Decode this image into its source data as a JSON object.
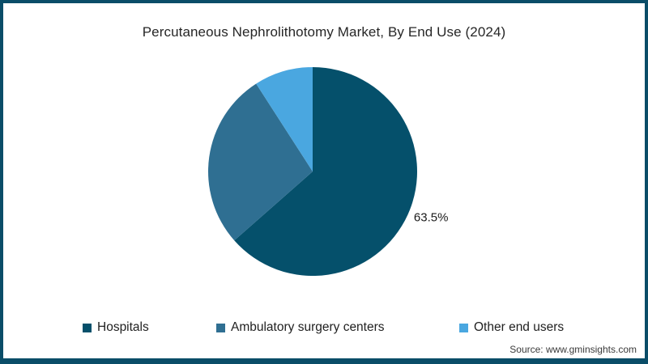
{
  "title": "Percutaneous Nephrolithotomy Market, By End Use (2024)",
  "source": "Source: www.gminsights.com",
  "colors": {
    "frame_border": "#0a4d68",
    "background": "#ffffff",
    "title_text": "#262626",
    "data_label_text": "#1a1a1a",
    "source_text": "#3a3a3a"
  },
  "chart_data": {
    "type": "pie",
    "title": "Percutaneous Nephrolithotomy Market, By End Use (2024)",
    "unit": "%",
    "start_angle_deg": -90,
    "direction": "clockwise",
    "legend_position": "bottom",
    "note": "Only the Hospitals slice shows a printed data label (63.5%); the other two slice values are estimated from arc angles.",
    "slices": [
      {
        "label": "Hospitals",
        "value": 63.5,
        "color": "#05506b",
        "data_label": "63.5%"
      },
      {
        "label": "Ambulatory surgery centers",
        "value": 27.4,
        "color": "#2f6f92",
        "data_label": ""
      },
      {
        "label": "Other end users",
        "value": 9.1,
        "color": "#4aa7e0",
        "data_label": ""
      }
    ]
  },
  "legend": {
    "items": [
      {
        "label": "Hospitals",
        "color": "#05506b"
      },
      {
        "label": "Ambulatory surgery centers",
        "color": "#2f6f92"
      },
      {
        "label": "Other end users",
        "color": "#4aa7e0"
      }
    ]
  }
}
